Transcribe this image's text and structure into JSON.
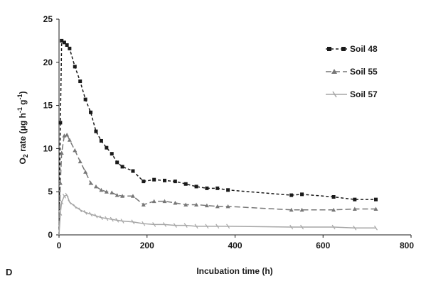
{
  "panel_label": "D",
  "chart_data": {
    "type": "line",
    "xlabel": "Incubation time (h)",
    "ylabel": {
      "lead": "O",
      "sub": "2",
      "rest": " rate (μg h",
      "sup1": "-1",
      "mid": " g",
      "sup2": "-1",
      "tail": ")"
    },
    "xlim": [
      0,
      800
    ],
    "ylim": [
      0,
      25
    ],
    "xticks": [
      "0",
      "200",
      "400",
      "600",
      "800"
    ],
    "yticks": [
      "0",
      "5",
      "10",
      "15",
      "20",
      "25"
    ],
    "grid": false,
    "legend_position": "top-right",
    "series": [
      {
        "name": "Soil 48",
        "color": "#1a1a1a",
        "marker": "square",
        "dash": "4,3",
        "x": [
          0,
          3,
          6,
          12,
          18,
          24,
          36,
          48,
          60,
          72,
          84,
          96,
          108,
          120,
          132,
          144,
          168,
          192,
          216,
          240,
          264,
          288,
          312,
          336,
          360,
          384,
          528,
          552,
          624,
          672,
          720
        ],
        "y": [
          0,
          13.0,
          22.5,
          22.3,
          22.0,
          21.6,
          19.5,
          17.8,
          15.7,
          14.2,
          12.0,
          10.9,
          10.1,
          9.4,
          8.4,
          7.9,
          7.4,
          6.2,
          6.4,
          6.3,
          6.2,
          5.9,
          5.6,
          5.4,
          5.4,
          5.2,
          4.6,
          4.7,
          4.4,
          4.1,
          4.1
        ]
      },
      {
        "name": "Soil 55",
        "color": "#777777",
        "marker": "triangle",
        "dash": "8,4",
        "x": [
          0,
          3,
          6,
          12,
          18,
          24,
          36,
          48,
          60,
          72,
          84,
          96,
          108,
          120,
          132,
          144,
          168,
          192,
          216,
          240,
          264,
          288,
          312,
          336,
          360,
          384,
          528,
          552,
          624,
          672,
          720
        ],
        "y": [
          0,
          6.0,
          9.5,
          11.5,
          11.6,
          11.0,
          9.8,
          8.5,
          7.3,
          6.0,
          5.6,
          5.2,
          5.0,
          4.9,
          4.6,
          4.5,
          4.5,
          3.5,
          3.9,
          3.9,
          3.7,
          3.5,
          3.5,
          3.4,
          3.3,
          3.3,
          2.9,
          2.9,
          2.9,
          3.0,
          3.0
        ]
      },
      {
        "name": "Soil 57",
        "color": "#a6a6a6",
        "marker": "dash",
        "dash": "",
        "x": [
          0,
          3,
          6,
          12,
          18,
          24,
          36,
          48,
          60,
          72,
          84,
          96,
          108,
          120,
          132,
          144,
          168,
          192,
          216,
          240,
          264,
          288,
          312,
          336,
          360,
          384,
          528,
          552,
          624,
          672,
          720
        ],
        "y": [
          0,
          2.5,
          3.8,
          4.5,
          4.6,
          3.8,
          3.3,
          2.9,
          2.6,
          2.4,
          2.2,
          2.0,
          1.9,
          1.8,
          1.7,
          1.6,
          1.5,
          1.3,
          1.2,
          1.2,
          1.1,
          1.1,
          1.0,
          1.0,
          1.0,
          1.0,
          0.9,
          0.9,
          0.9,
          0.8,
          0.8
        ]
      }
    ]
  }
}
